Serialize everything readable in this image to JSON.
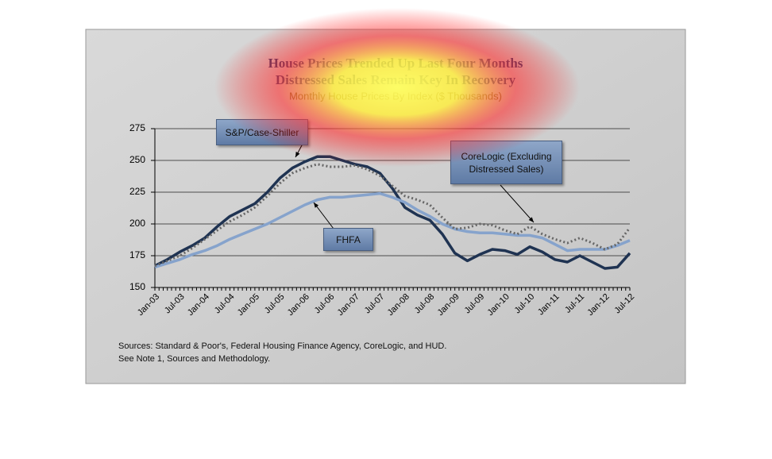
{
  "chart_data": {
    "type": "line",
    "title": "House Prices Trended Up Last Four Months",
    "subtitle": "Distressed Sales Remain Key In Recovery",
    "y_axis_title": "Monthly House Prices By Index ($ Thousands)",
    "categories": [
      "Jan-03",
      null,
      "Jul-03",
      null,
      "Jan-04",
      null,
      "Jul-04",
      null,
      "Jan-05",
      null,
      "Jul-05",
      null,
      "Jan-06",
      null,
      "Jul-06",
      null,
      "Jan-07",
      null,
      "Jul-07",
      null,
      "Jan-08",
      null,
      "Jul-08",
      null,
      "Jan-09",
      null,
      "Jul-09",
      null,
      "Jan-10",
      null,
      "Jul-10",
      null,
      "Jan-11",
      null,
      "Jul-11",
      null,
      "Jan-12",
      null,
      "Jul-12"
    ],
    "series": [
      {
        "name": "S&P/Case-Shiller",
        "color": "#1f3352",
        "dash": false,
        "values": [
          167,
          172,
          178,
          183,
          189,
          198,
          206,
          211,
          216,
          225,
          236,
          244,
          249,
          253,
          253,
          250,
          247,
          245,
          240,
          228,
          213,
          207,
          203,
          192,
          177,
          171,
          176,
          180,
          179,
          176,
          182,
          178,
          172,
          170,
          175,
          170,
          165,
          166,
          177
        ]
      },
      {
        "name": "FHFA",
        "color": "#86a3cc",
        "dash": false,
        "values": [
          166,
          169,
          172,
          176,
          179,
          183,
          188,
          192,
          196,
          200,
          205,
          210,
          215,
          219,
          221,
          221,
          222,
          223,
          224,
          221,
          217,
          211,
          206,
          200,
          196,
          194,
          193,
          193,
          192,
          191,
          191,
          189,
          184,
          179,
          180,
          180,
          180,
          183,
          187
        ]
      },
      {
        "name": "CoreLogic (Excluding Distressed Sales)",
        "color": "#666666",
        "dash": true,
        "values": [
          167,
          171,
          175,
          181,
          188,
          195,
          202,
          207,
          213,
          222,
          232,
          240,
          244,
          247,
          245,
          245,
          246,
          243,
          238,
          230,
          222,
          219,
          215,
          205,
          196,
          197,
          200,
          199,
          195,
          192,
          198,
          192,
          188,
          185,
          189,
          185,
          180,
          184,
          197
        ]
      }
    ],
    "ylim": [
      150,
      275
    ],
    "yticks": [
      150,
      175,
      200,
      225,
      250,
      275
    ],
    "grid": true,
    "footnotes": [
      "Sources:  Standard & Poor's, Federal Housing Finance Agency, CoreLogic, and HUD.",
      "See Note 1, Sources and Methodology."
    ]
  }
}
